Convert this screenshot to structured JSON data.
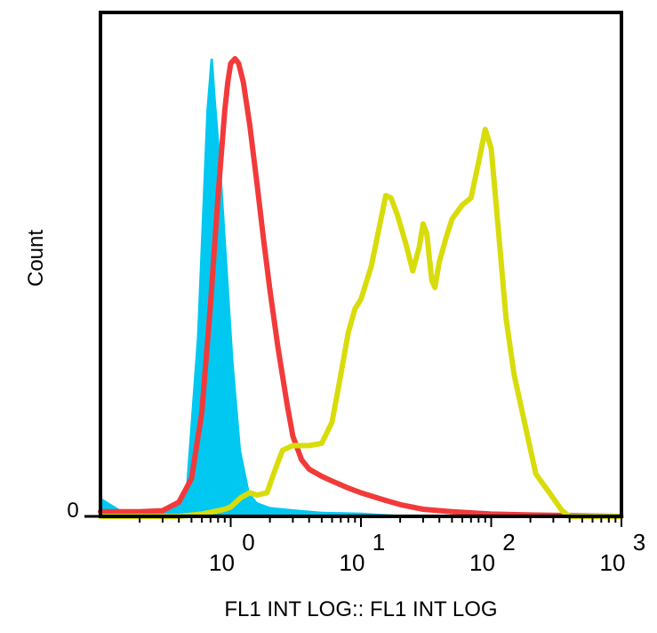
{
  "chart_data": {
    "type": "area",
    "title": "",
    "xlabel": "FL1 INT LOG:: FL1 INT LOG",
    "ylabel": "Count",
    "x_scale": "log",
    "xlim": [
      0.1,
      1000
    ],
    "ylim": [
      0,
      100
    ],
    "grid": false,
    "legend": "none",
    "x_tick_labels": [
      {
        "x": 1,
        "base": "10",
        "exp": "0"
      },
      {
        "x": 10,
        "base": "10",
        "exp": "1"
      },
      {
        "x": 100,
        "base": "10",
        "exp": "2"
      },
      {
        "x": 1000,
        "base": "10",
        "exp": "3"
      }
    ],
    "y_tick_labels": [
      {
        "y": 0,
        "label": "0"
      }
    ],
    "series": [
      {
        "style": "filled",
        "color": "#00C8F0",
        "points": [
          [
            0.1,
            4
          ],
          [
            0.15,
            1
          ],
          [
            0.25,
            1
          ],
          [
            0.35,
            2
          ],
          [
            0.45,
            5
          ],
          [
            0.55,
            38
          ],
          [
            0.65,
            86
          ],
          [
            0.7,
            97
          ],
          [
            0.73,
            97
          ],
          [
            0.77,
            88
          ],
          [
            0.85,
            73
          ],
          [
            0.95,
            52
          ],
          [
            1.05,
            33
          ],
          [
            1.2,
            14
          ],
          [
            1.4,
            5
          ],
          [
            1.6,
            3
          ],
          [
            2.0,
            2
          ],
          [
            3.0,
            1.5
          ],
          [
            5.0,
            1
          ],
          [
            10,
            0.8
          ],
          [
            20,
            0.3
          ],
          [
            30,
            0.1
          ],
          [
            1000,
            0
          ]
        ]
      },
      {
        "style": "line",
        "color": "#F23A3A",
        "points": [
          [
            0.1,
            1
          ],
          [
            0.2,
            1
          ],
          [
            0.3,
            1.2
          ],
          [
            0.4,
            3
          ],
          [
            0.5,
            8
          ],
          [
            0.6,
            22
          ],
          [
            0.7,
            45
          ],
          [
            0.8,
            68
          ],
          [
            0.9,
            86
          ],
          [
            0.95,
            92
          ],
          [
            1.0,
            96
          ],
          [
            1.08,
            97
          ],
          [
            1.15,
            96
          ],
          [
            1.25,
            92
          ],
          [
            1.4,
            83
          ],
          [
            1.6,
            70
          ],
          [
            1.8,
            58
          ],
          [
            2.0,
            48
          ],
          [
            2.3,
            36
          ],
          [
            2.7,
            24
          ],
          [
            3.0,
            17
          ],
          [
            3.5,
            12
          ],
          [
            4.0,
            10
          ],
          [
            5.0,
            8.5
          ],
          [
            6.0,
            7.5
          ],
          [
            8.0,
            6
          ],
          [
            10,
            5
          ],
          [
            15,
            3.5
          ],
          [
            20,
            2.5
          ],
          [
            30,
            1.5
          ],
          [
            50,
            1
          ],
          [
            100,
            0.5
          ],
          [
            200,
            0.3
          ],
          [
            1000,
            0
          ]
        ]
      },
      {
        "style": "line",
        "color": "#D8DC0A",
        "points": [
          [
            0.1,
            0
          ],
          [
            0.4,
            0
          ],
          [
            0.6,
            0.5
          ],
          [
            0.9,
            1.5
          ],
          [
            1.0,
            2
          ],
          [
            1.2,
            4
          ],
          [
            1.4,
            5
          ],
          [
            1.6,
            4.5
          ],
          [
            1.9,
            5
          ],
          [
            2.2,
            10
          ],
          [
            2.5,
            14
          ],
          [
            3.0,
            15
          ],
          [
            4.0,
            15
          ],
          [
            5.0,
            15.5
          ],
          [
            6.0,
            20
          ],
          [
            7.0,
            30
          ],
          [
            8.0,
            39
          ],
          [
            9.0,
            44
          ],
          [
            10,
            46
          ],
          [
            12,
            53
          ],
          [
            14,
            62
          ],
          [
            15.5,
            68
          ],
          [
            17,
            67.5
          ],
          [
            19,
            64
          ],
          [
            22,
            58
          ],
          [
            25,
            52
          ],
          [
            28,
            57
          ],
          [
            30,
            62
          ],
          [
            32,
            60
          ],
          [
            35,
            50
          ],
          [
            37,
            48.5
          ],
          [
            40,
            54
          ],
          [
            45,
            59
          ],
          [
            50,
            63
          ],
          [
            60,
            66
          ],
          [
            70,
            67.5
          ],
          [
            80,
            75
          ],
          [
            90,
            82
          ],
          [
            100,
            78
          ],
          [
            110,
            65
          ],
          [
            130,
            42
          ],
          [
            150,
            30
          ],
          [
            180,
            20
          ],
          [
            220,
            9
          ],
          [
            280,
            5
          ],
          [
            350,
            1.2
          ],
          [
            400,
            0
          ],
          [
            1000,
            0
          ]
        ]
      }
    ]
  }
}
